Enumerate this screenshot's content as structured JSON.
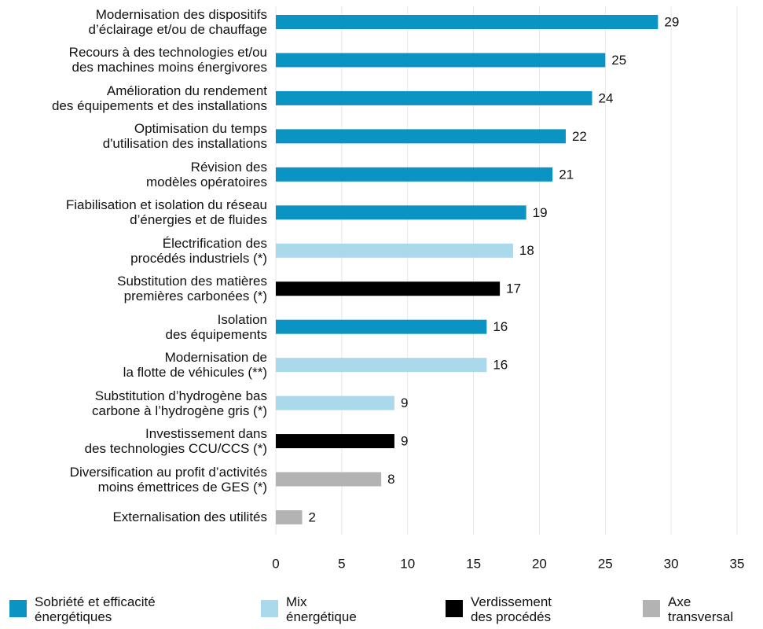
{
  "chart_data": {
    "type": "barh",
    "categories": [
      "Modernisation des dispositifs\nd’éclairage et/ou de chauffage",
      "Recours à des technologies et/ou\ndes machines moins énergivores",
      "Amélioration du rendement\ndes équipements et des installations",
      "Optimisation du temps\nd'utilisation des installations",
      "Révision des\nmodèles opératoires",
      "Fiabilisation et isolation du réseau\nd’énergies et de fluides",
      "Électrification des\nprocédés industriels (*)",
      "Substitution des matières\npremières carbonées (*)",
      "Isolation\ndes équipements",
      "Modernisation de\nla flotte de véhicules (**)",
      "Substitution d’hydrogène bas\ncarbone à l’hydrogène gris (*)",
      "Investissement dans\ndes technologies CCU/CCS (*)",
      "Diversification au profit d’activités\nmoins émettrices de GES (*)",
      "Externalisation des utilités"
    ],
    "series": [
      {
        "name": "Sobriété et efficacité\nénergétiques",
        "color": "#0a93c3",
        "values": [
          29,
          25,
          24,
          22,
          21,
          19,
          null,
          null,
          16,
          null,
          null,
          null,
          null,
          null
        ]
      },
      {
        "name": "Mix\nénergétique",
        "color": "#a9d9ea",
        "values": [
          null,
          null,
          null,
          null,
          null,
          null,
          18,
          null,
          null,
          16,
          9,
          null,
          null,
          null
        ]
      },
      {
        "name": "Verdissement\ndes procédés",
        "color": "#000000",
        "values": [
          null,
          null,
          null,
          null,
          null,
          null,
          null,
          17,
          null,
          null,
          null,
          9,
          null,
          null
        ]
      },
      {
        "name": "Axe\ntransversal",
        "color": "#b3b3b3",
        "values": [
          null,
          null,
          null,
          null,
          null,
          null,
          null,
          null,
          null,
          null,
          null,
          null,
          8,
          2
        ]
      }
    ],
    "xlim": [
      0,
      35
    ],
    "xticks": [
      0,
      5,
      10,
      15,
      20,
      25,
      30,
      35
    ],
    "grid": true,
    "legend": "bottom"
  }
}
